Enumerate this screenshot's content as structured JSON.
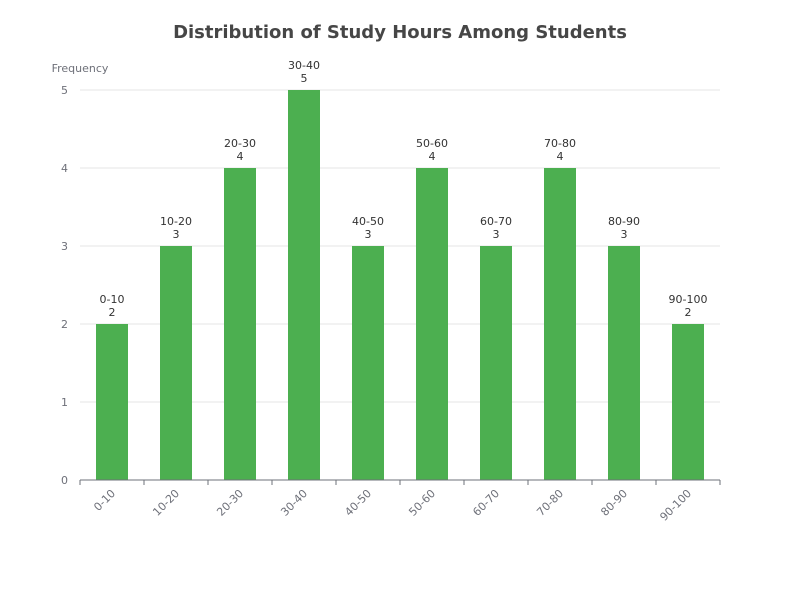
{
  "chart_data": {
    "type": "bar",
    "title": "Distribution of Study Hours Among Students",
    "xlabel": "",
    "ylabel": "Frequency",
    "categories": [
      "0-10",
      "10-20",
      "20-30",
      "30-40",
      "40-50",
      "50-60",
      "60-70",
      "70-80",
      "80-90",
      "90-100"
    ],
    "values": [
      2,
      3,
      4,
      5,
      3,
      4,
      3,
      4,
      3,
      2
    ],
    "ylim": [
      0,
      5
    ],
    "yticks": [
      0,
      1,
      2,
      3,
      4,
      5
    ],
    "grid": true,
    "bar_color": "#4caf50",
    "x_tick_rotation_deg": 45,
    "data_labels": "category and value above each bar"
  }
}
